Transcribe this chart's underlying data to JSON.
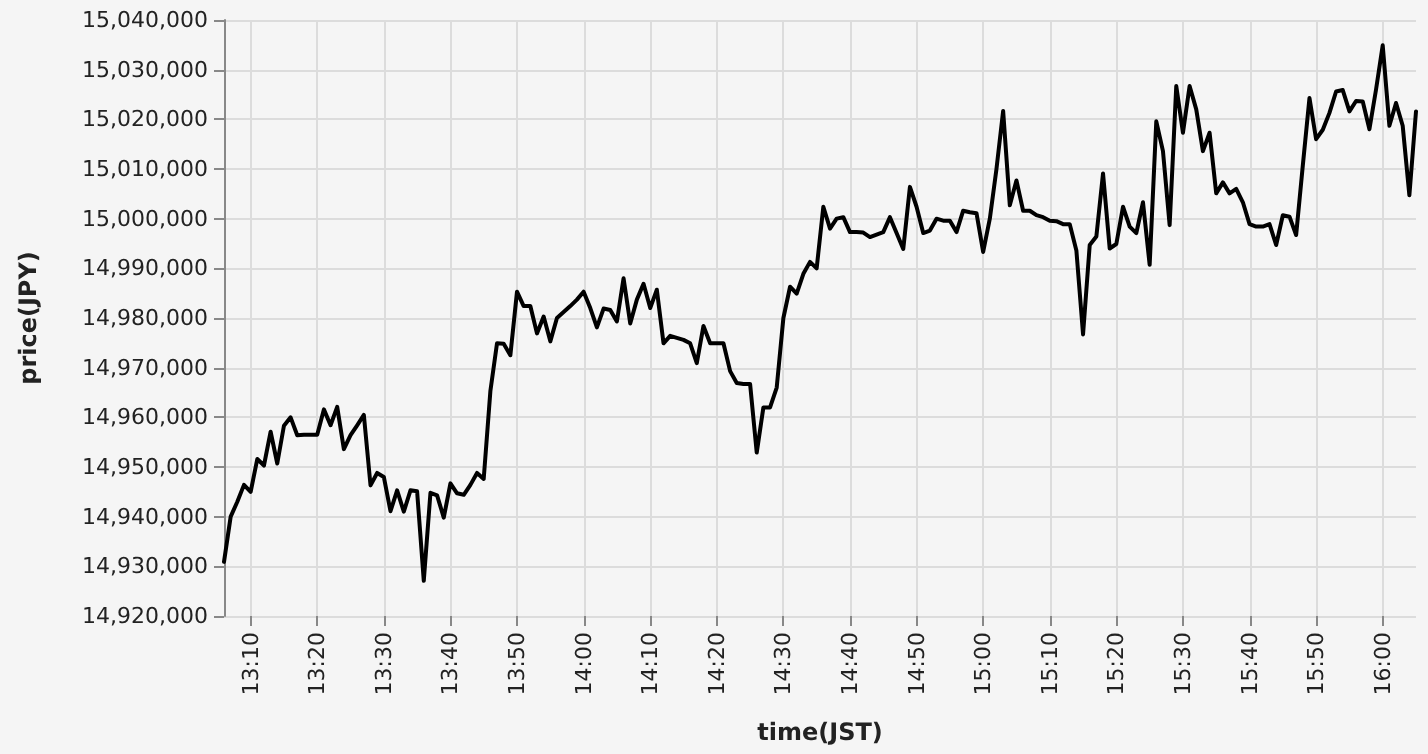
{
  "chart_data": {
    "type": "line",
    "xlabel": "time(JST)",
    "ylabel": "price(JPY)",
    "grid": true,
    "marker": "none",
    "line_style": "solid",
    "xlim": [
      13.1,
      16.0833
    ],
    "xticks": [
      {
        "value": 13.1667,
        "label": "13:10"
      },
      {
        "value": 13.3333,
        "label": "13:20"
      },
      {
        "value": 13.5,
        "label": "13:30"
      },
      {
        "value": 13.6667,
        "label": "13:40"
      },
      {
        "value": 13.8333,
        "label": "13:50"
      },
      {
        "value": 14,
        "label": "14:00"
      },
      {
        "value": 14.1667,
        "label": "14:10"
      },
      {
        "value": 14.3333,
        "label": "14:20"
      },
      {
        "value": 14.5,
        "label": "14:30"
      },
      {
        "value": 14.6667,
        "label": "14:40"
      },
      {
        "value": 14.8333,
        "label": "14:50"
      },
      {
        "value": 15,
        "label": "15:00"
      },
      {
        "value": 15.1667,
        "label": "15:10"
      },
      {
        "value": 15.3333,
        "label": "15:20"
      },
      {
        "value": 15.5,
        "label": "15:30"
      },
      {
        "value": 15.6667,
        "label": "15:40"
      },
      {
        "value": 15.8333,
        "label": "15:50"
      },
      {
        "value": 16,
        "label": "16:00"
      }
    ],
    "ylim": [
      14920000,
      15040000
    ],
    "yticks": [
      {
        "value": 14920000,
        "label": "14,920,000"
      },
      {
        "value": 14930000,
        "label": "14,930,000"
      },
      {
        "value": 14940000,
        "label": "14,940,000"
      },
      {
        "value": 14950000,
        "label": "14,950,000"
      },
      {
        "value": 14960000,
        "label": "14,960,000"
      },
      {
        "value": 14970000,
        "label": "14,970,000"
      },
      {
        "value": 14980000,
        "label": "14,980,000"
      },
      {
        "value": 14990000,
        "label": "14,990,000"
      },
      {
        "value": 15000000,
        "label": "15,000,000"
      },
      {
        "value": 15010000,
        "label": "15,010,000"
      },
      {
        "value": 15020000,
        "label": "15,020,000"
      },
      {
        "value": 15030000,
        "label": "15,030,000"
      },
      {
        "value": 15040000,
        "label": "15,040,000"
      }
    ],
    "series": [
      {
        "color": "#000000",
        "x": [
          13.1,
          13.1167,
          13.1333,
          13.15,
          13.1667,
          13.1833,
          13.2,
          13.2167,
          13.2333,
          13.25,
          13.2667,
          13.2833,
          13.3,
          13.3167,
          13.3333,
          13.35,
          13.3667,
          13.3833,
          13.4,
          13.4167,
          13.4333,
          13.45,
          13.4667,
          13.4833,
          13.5,
          13.5167,
          13.5333,
          13.55,
          13.5667,
          13.5833,
          13.6,
          13.6167,
          13.6333,
          13.65,
          13.6667,
          13.6833,
          13.7,
          13.7167,
          13.7333,
          13.75,
          13.7667,
          13.7833,
          13.8,
          13.8167,
          13.8333,
          13.85,
          13.8667,
          13.8833,
          13.9,
          13.9167,
          13.9333,
          13.95,
          13.9667,
          13.9833,
          14,
          14.0167,
          14.0333,
          14.05,
          14.0667,
          14.0833,
          14.1,
          14.1167,
          14.1333,
          14.15,
          14.1667,
          14.1833,
          14.2,
          14.2167,
          14.2333,
          14.25,
          14.2667,
          14.2833,
          14.3,
          14.3167,
          14.3333,
          14.35,
          14.3667,
          14.3833,
          14.4,
          14.4167,
          14.4333,
          14.45,
          14.4667,
          14.4833,
          14.5,
          14.5167,
          14.5333,
          14.55,
          14.5667,
          14.5833,
          14.6,
          14.6167,
          14.6333,
          14.65,
          14.6667,
          14.6833,
          14.7,
          14.7167,
          14.7333,
          14.75,
          14.7667,
          14.7833,
          14.8,
          14.8167,
          14.8333,
          14.85,
          14.8667,
          14.8833,
          14.9,
          14.9167,
          14.9333,
          14.95,
          14.9667,
          14.9833,
          15,
          15.0167,
          15.0333,
          15.05,
          15.0667,
          15.0833,
          15.1,
          15.1167,
          15.1333,
          15.15,
          15.1667,
          15.1833,
          15.2,
          15.2167,
          15.2333,
          15.25,
          15.2667,
          15.2833,
          15.3,
          15.3167,
          15.3333,
          15.35,
          15.3667,
          15.3833,
          15.4,
          15.4167,
          15.4333,
          15.45,
          15.4667,
          15.4833,
          15.5,
          15.5167,
          15.5333,
          15.55,
          15.5667,
          15.5833,
          15.6,
          15.6167,
          15.6333,
          15.65,
          15.6667,
          15.6833,
          15.7,
          15.7167,
          15.7333,
          15.75,
          15.7667,
          15.7833,
          15.8,
          15.8167,
          15.8333,
          15.85,
          15.8667,
          15.8833,
          15.9,
          15.9167,
          15.9333,
          15.95,
          15.9667,
          15.9833,
          16,
          16.0167,
          16.0333,
          16.05,
          16.0667,
          16.0833
        ],
        "values": [
          14930900,
          14940000,
          14943000,
          14946400,
          14945000,
          14951600,
          14950300,
          14957100,
          14950700,
          14958300,
          14960000,
          14956400,
          14956500,
          14956500,
          14956500,
          14961600,
          14958400,
          14962100,
          14953600,
          14956400,
          14958400,
          14960500,
          14946300,
          14948800,
          14948000,
          14941100,
          14945300,
          14941000,
          14945300,
          14945100,
          14927100,
          14944800,
          14944300,
          14939800,
          14946700,
          14944700,
          14944400,
          14946400,
          14948800,
          14947600,
          14965300,
          14974900,
          14974800,
          14972500,
          14985300,
          14982400,
          14982400,
          14976900,
          14980300,
          14975300,
          14980000,
          14981200,
          14982400,
          14983700,
          14985300,
          14982000,
          14978100,
          14981900,
          14981600,
          14979300,
          14988000,
          14978900,
          14983700,
          14986900,
          14982000,
          14985700,
          14974900,
          14976400,
          14976000,
          14975600,
          14974900,
          14970900,
          14978400,
          14974900,
          14974900,
          14974900,
          14969300,
          14966900,
          14966700,
          14966700,
          14952900,
          14962000,
          14962000,
          14966000,
          14980000,
          14986300,
          14984900,
          14988900,
          14991300,
          14990000,
          15002400,
          14998000,
          15000000,
          15000300,
          14997300,
          14997300,
          14997200,
          14996300,
          14996800,
          14997300,
          15000300,
          14997100,
          14993900,
          15006400,
          15002400,
          14997100,
          14997600,
          15000000,
          14999600,
          14999600,
          14997300,
          15001600,
          15001300,
          15001100,
          14993300,
          15000000,
          15010000,
          15021700,
          15002700,
          15007700,
          15001600,
          15001600,
          15000700,
          15000300,
          14999600,
          14999500,
          14998900,
          14998900,
          14993600,
          14976700,
          14994700,
          14996400,
          15009100,
          14994000,
          14994900,
          15002400,
          14998400,
          14997100,
          15003300,
          14990700,
          15019600,
          15013600,
          14998700,
          15026700,
          15017300,
          15026700,
          15022000,
          15013600,
          15017300,
          15005100,
          15007300,
          15005100,
          15006000,
          15003300,
          14998900,
          14998400,
          14998400,
          14998900,
          14994700,
          15000700,
          15000400,
          14996700,
          15010700,
          15024300,
          15016000,
          15017900,
          15021300,
          15025600,
          15025900,
          15021600,
          15023700,
          15023600,
          15018000,
          15026000,
          15034900,
          15018700,
          15023300,
          15018700,
          15004700,
          15021600
        ]
      }
    ]
  }
}
